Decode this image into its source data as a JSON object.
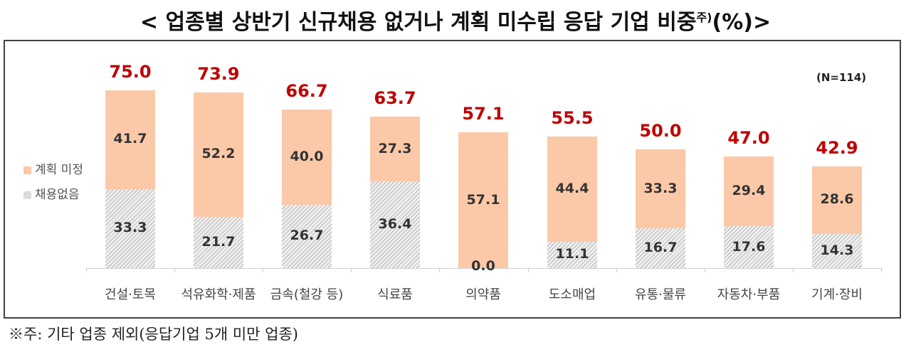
{
  "title": {
    "main": "< 업종별 상반기 신규채용 없거나 계획 미수립 응답 기업 비중",
    "sup": "주)",
    "tail": "(%)>"
  },
  "sample_size": "(N=114)",
  "legend": {
    "plan": "계획 미정",
    "none": "채용없음"
  },
  "note": "※주: 기타 업종 제외(응답기업 5개 미만 업종)",
  "colors": {
    "plan": "#fbc9a8",
    "none_hatch": "#b8b8b8",
    "total": "#c00000"
  },
  "chart_data": {
    "type": "bar",
    "stacked": true,
    "title": "업종별 상반기 신규채용 없거나 계획 미수립 응답 기업 비중(%)",
    "xlabel": "",
    "ylabel": "",
    "ylim": [
      0,
      80
    ],
    "grid": false,
    "legend_position": "left",
    "annotation": "(N=114)",
    "categories": [
      "건설·토목",
      "석유화학·제품",
      "금속(철강 등)",
      "식료품",
      "의약품",
      "도소매업",
      "유통·물류",
      "자동차·부품",
      "기계·장비"
    ],
    "series": [
      {
        "name": "채용없음",
        "values": [
          33.3,
          21.7,
          26.7,
          36.4,
          0.0,
          11.1,
          16.7,
          17.6,
          14.3
        ]
      },
      {
        "name": "계획 미정",
        "values": [
          41.7,
          52.2,
          40.0,
          27.3,
          57.1,
          44.4,
          33.3,
          29.4,
          28.6
        ]
      }
    ],
    "totals": [
      75.0,
      73.9,
      66.7,
      63.7,
      57.1,
      55.5,
      50.0,
      47.0,
      42.9
    ],
    "labels": {
      "none": [
        "33.3",
        "21.7",
        "26.7",
        "36.4",
        "0.0",
        "11.1",
        "16.7",
        "17.6",
        "14.3"
      ],
      "plan": [
        "41.7",
        "52.2",
        "40.0",
        "27.3",
        "57.1",
        "44.4",
        "33.3",
        "29.4",
        "28.6"
      ],
      "totals": [
        "75.0",
        "73.9",
        "66.7",
        "63.7",
        "57.1",
        "55.5",
        "50.0",
        "47.0",
        "42.9"
      ]
    }
  }
}
